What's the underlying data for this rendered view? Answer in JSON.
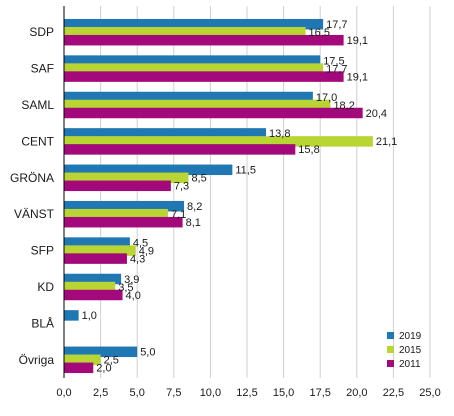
{
  "chart_data": {
    "type": "bar",
    "orientation": "horizontal",
    "categories": [
      "SDP",
      "SAF",
      "SAML",
      "CENT",
      "GRÖNA",
      "VÄNST",
      "SFP",
      "KD",
      "BLÅ",
      "Övriga"
    ],
    "series": [
      {
        "name": "2019",
        "color": "#1f77b4",
        "values": [
          17.7,
          17.5,
          17.0,
          13.8,
          11.5,
          8.2,
          4.5,
          3.9,
          1.0,
          5.0
        ],
        "labels": [
          "17,7",
          "17,5",
          "17,0",
          "13,8",
          "11,5",
          "8,2",
          "4,5",
          "3,9",
          "1,0",
          "5,0"
        ]
      },
      {
        "name": "2015",
        "color": "#b9d533",
        "values": [
          16.5,
          17.7,
          18.2,
          21.1,
          8.5,
          7.1,
          4.9,
          3.5,
          null,
          2.5
        ],
        "labels": [
          "16,5",
          "17,7",
          "18,2",
          "21,1",
          "8,5",
          "7,1",
          "4,9",
          "3,5",
          "",
          "2,5"
        ]
      },
      {
        "name": "2011",
        "color": "#a3097a",
        "values": [
          19.1,
          19.1,
          20.4,
          15.8,
          7.3,
          8.1,
          4.3,
          4.0,
          null,
          2.0
        ],
        "labels": [
          "19,1",
          "19,1",
          "20,4",
          "15,8",
          "7,3",
          "8,1",
          "4,3",
          "4,0",
          "",
          "2,0"
        ]
      }
    ],
    "xlim": [
      0,
      25
    ],
    "xticks": [
      0,
      2.5,
      5,
      7.5,
      10,
      12.5,
      15,
      17.5,
      20,
      22.5,
      25
    ],
    "xtick_labels": [
      "0,0",
      "2,5",
      "5,0",
      "7,5",
      "10,0",
      "12,5",
      "15,0",
      "17,5",
      "20,0",
      "22,5",
      "25,0"
    ],
    "grid": "vertical",
    "legend_position": "bottom-right"
  }
}
